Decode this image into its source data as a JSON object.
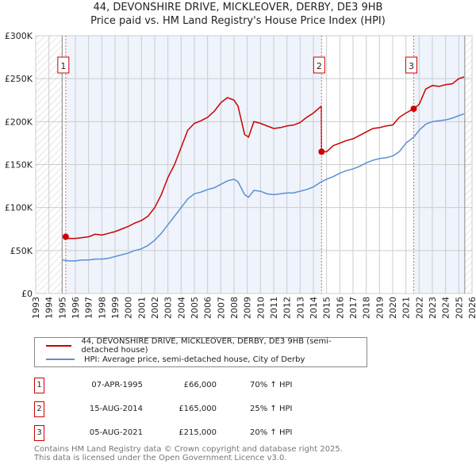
{
  "title": "44, DEVONSHIRE DRIVE, MICKLEOVER, DERBY, DE3 9HB",
  "subtitle": "Price paid vs. HM Land Registry's House Price Index (HPI)",
  "chart_data": {
    "type": "line",
    "xlim": [
      1993,
      2026
    ],
    "ylim": [
      0,
      300000
    ],
    "x_ticks": [
      "1993",
      "1994",
      "1995",
      "1996",
      "1997",
      "1998",
      "1999",
      "2000",
      "2001",
      "2002",
      "2003",
      "2004",
      "2005",
      "2006",
      "2007",
      "2008",
      "2009",
      "2010",
      "2011",
      "2012",
      "2013",
      "2014",
      "2015",
      "2016",
      "2017",
      "2018",
      "2019",
      "2020",
      "2021",
      "2022",
      "2023",
      "2024",
      "2025",
      "2026"
    ],
    "y_ticks": [
      {
        "v": 0,
        "label": "£0"
      },
      {
        "v": 50000,
        "label": "£50K"
      },
      {
        "v": 100000,
        "label": "£100K"
      },
      {
        "v": 150000,
        "label": "£150K"
      },
      {
        "v": 200000,
        "label": "£200K"
      },
      {
        "v": 250000,
        "label": "£250K"
      },
      {
        "v": 300000,
        "label": "£300K"
      }
    ],
    "data_range": [
      1995.0,
      2025.45
    ],
    "series": [
      {
        "name": "44, DEVONSHIRE DRIVE, MICKLEOVER, DERBY, DE3 9HB (semi-detached house)",
        "color": "#cc0000",
        "x": [
          1995.27,
          1995.5,
          1996,
          1996.5,
          1997,
          1997.5,
          1998,
          1998.5,
          1999,
          1999.5,
          2000,
          2000.5,
          2001,
          2001.5,
          2002,
          2002.5,
          2003,
          2003.5,
          2004,
          2004.5,
          2005,
          2005.5,
          2006,
          2006.5,
          2007,
          2007.5,
          2008,
          2008.3,
          2008.8,
          2009.1,
          2009.5,
          2010,
          2010.5,
          2011,
          2011.5,
          2012,
          2012.5,
          2013,
          2013.5,
          2014,
          2014.6,
          2014.62,
          2015,
          2015.5,
          2016,
          2016.5,
          2017,
          2017.5,
          2018,
          2018.5,
          2019,
          2019.5,
          2020,
          2020.5,
          2021,
          2021.6,
          2022,
          2022.5,
          2023,
          2023.5,
          2024,
          2024.5,
          2025,
          2025.4
        ],
        "y": [
          66000,
          64000,
          64000,
          65000,
          66000,
          69000,
          68000,
          70000,
          72000,
          75000,
          78000,
          82000,
          85000,
          90000,
          100000,
          115000,
          135000,
          150000,
          170000,
          190000,
          198000,
          201000,
          205000,
          212000,
          222000,
          228000,
          225000,
          218000,
          185000,
          182000,
          200000,
          198000,
          195000,
          192000,
          193000,
          195000,
          196000,
          199000,
          205000,
          210000,
          218000,
          165000,
          165000,
          172000,
          175000,
          178000,
          180000,
          184000,
          188000,
          192000,
          193000,
          195000,
          196000,
          205000,
          210000,
          215000,
          220000,
          238000,
          242000,
          241000,
          243000,
          244000,
          250000,
          252000
        ]
      },
      {
        "name": "HPI: Average price, semi-detached house, City of Derby",
        "color": "#5b8fd4",
        "x": [
          1995,
          1995.5,
          1996,
          1996.5,
          1997,
          1997.5,
          1998,
          1998.5,
          1999,
          1999.5,
          2000,
          2000.5,
          2001,
          2001.5,
          2002,
          2002.5,
          2003,
          2003.5,
          2004,
          2004.5,
          2005,
          2005.5,
          2006,
          2006.5,
          2007,
          2007.5,
          2008,
          2008.3,
          2008.8,
          2009.1,
          2009.5,
          2010,
          2010.5,
          2011,
          2011.5,
          2012,
          2012.5,
          2013,
          2013.5,
          2014,
          2014.6,
          2015,
          2015.5,
          2016,
          2016.5,
          2017,
          2017.5,
          2018,
          2018.5,
          2019,
          2019.5,
          2020,
          2020.5,
          2021,
          2021.6,
          2022,
          2022.5,
          2023,
          2023.5,
          2024,
          2024.5,
          2025,
          2025.4
        ],
        "y": [
          39000,
          38000,
          38000,
          39000,
          39000,
          40000,
          40000,
          41000,
          43000,
          45000,
          47000,
          50000,
          52000,
          56000,
          62000,
          70000,
          80000,
          90000,
          100000,
          110000,
          116000,
          118000,
          121000,
          123000,
          127000,
          131000,
          133000,
          130000,
          115000,
          112000,
          120000,
          119000,
          116000,
          115000,
          116000,
          117000,
          117000,
          119000,
          121000,
          124000,
          130000,
          133000,
          136000,
          140000,
          143000,
          145000,
          148000,
          152000,
          155000,
          157000,
          158000,
          160000,
          165000,
          175000,
          182000,
          190000,
          197000,
          200000,
          201000,
          202000,
          204000,
          207000,
          209000
        ]
      }
    ],
    "sales": [
      {
        "n": "1",
        "x": 1995.27,
        "y": 66000
      },
      {
        "n": "2",
        "x": 2014.62,
        "y": 165000
      },
      {
        "n": "3",
        "x": 2021.59,
        "y": 215000
      }
    ]
  },
  "legend": [
    {
      "label": "44, DEVONSHIRE DRIVE, MICKLEOVER, DERBY, DE3 9HB (semi-detached house)",
      "color": "#cc0000"
    },
    {
      "label": "HPI: Average price, semi-detached house, City of Derby",
      "color": "#5b8fd4"
    }
  ],
  "transactions": [
    {
      "n": "1",
      "date": "07-APR-1995",
      "price": "£66,000",
      "hpi": "70% ↑ HPI"
    },
    {
      "n": "2",
      "date": "15-AUG-2014",
      "price": "£165,000",
      "hpi": "25% ↑ HPI"
    },
    {
      "n": "3",
      "date": "05-AUG-2021",
      "price": "£215,000",
      "hpi": "20% ↑ HPI"
    }
  ],
  "footer": [
    "Contains HM Land Registry data © Crown copyright and database right 2025.",
    "This data is licensed under the Open Government Licence v3.0."
  ]
}
